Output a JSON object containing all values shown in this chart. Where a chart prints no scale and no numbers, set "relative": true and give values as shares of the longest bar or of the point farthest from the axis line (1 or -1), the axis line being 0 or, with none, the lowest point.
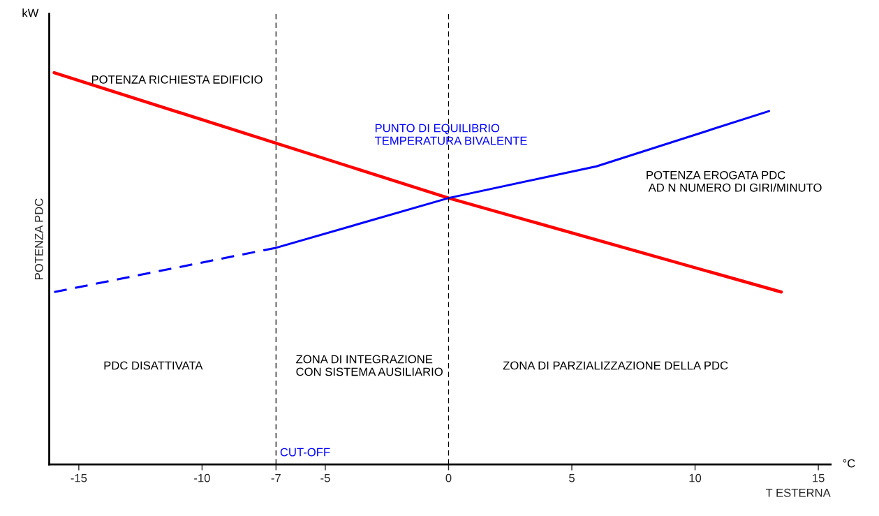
{
  "chart_data": {
    "type": "line",
    "relative": true,
    "xlabel": "T ESTERNA",
    "ylabel": "POTENZA PDC",
    "xlim": [
      -16.2,
      15.5
    ],
    "xticks": [
      -15,
      -10,
      -7,
      -5,
      0,
      5,
      10,
      15
    ],
    "series": [
      {
        "name": "POTENZA RICHIESTA EDIFICIO",
        "color": "#ff0000",
        "x": [
          -16,
          0,
          13.5
        ],
        "values": [
          1.0,
          0.68,
          0.44
        ],
        "line_style": "solid"
      },
      {
        "color": "#0000ff",
        "x": [
          -16,
          -7
        ],
        "values": [
          0.44,
          0.553
        ],
        "line_style": "dashed"
      },
      {
        "name": "POTENZA EROGATA PDC\n AD N NUMERO DI GIRI/MINUTO",
        "color": "#0000ff",
        "x": [
          -7,
          0,
          6,
          13
        ],
        "values": [
          0.553,
          0.68,
          0.761,
          0.902
        ],
        "line_style": "solid"
      }
    ],
    "ref_lines": [
      {
        "axis": "x",
        "value": -7,
        "label": "CUT-OFF",
        "line_style": "dashed",
        "color": "#000000"
      },
      {
        "axis": "x",
        "value": 0,
        "line_style": "dashed",
        "color": "#000000"
      }
    ],
    "annotations": [
      "kW",
      "°C",
      "PUNTO DI EQUILIBRIO\nTEMPERATURA BIVALENTE",
      "PDC DISATTIVATA",
      "ZONA DI INTEGRAZIONE\nCON SISTEMA AUSILIARIO",
      "ZONA DI PARZIALIZZAZIONE DELLA PDC"
    ],
    "grid": false,
    "legend": false,
    "marker": "none"
  }
}
